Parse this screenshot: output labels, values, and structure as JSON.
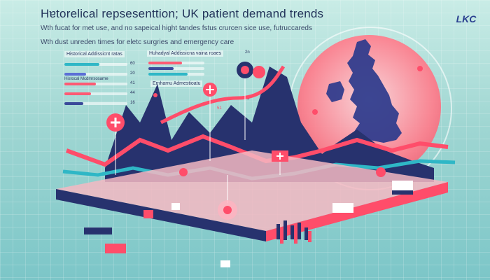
{
  "header": {
    "title": "Hɐtorelical repsesenttion; UK patient demand trends",
    "subtitle": "Wth fucat for met use, and no sapeical hight tandes fstus crurcen sice use, futruccareds",
    "subtitle2": "Wth dust unreden times for eletc surgries and emergency care"
  },
  "logo": {
    "text": "LKC"
  },
  "panels": {
    "left_label": "Historical Addissicnt ratas",
    "center_label": "Huhadyal Addissicna vaina roaes",
    "center_label2": "Emhamu Admestioatu",
    "small_tag": "2n",
    "tick_a": "51",
    "tick_b": "3"
  },
  "left_bars": [
    {
      "label": "",
      "value": "60",
      "color": "#2fb7c6",
      "fill": 0.55
    },
    {
      "label": "",
      "value": "20",
      "color": "#5b6fd6",
      "fill": 0.35
    },
    {
      "label": "Histocal Mcdmrsosarne",
      "value": "41",
      "color": "#ff5a73",
      "fill": 0.5
    },
    {
      "label": "",
      "value": "44",
      "color": "#ff5a73",
      "fill": 0.42
    },
    {
      "label": "",
      "value": "16",
      "color": "#3a4a9a",
      "fill": 0.3
    }
  ],
  "center_bars": [
    {
      "color": "#ff5a73",
      "fill": 0.6
    },
    {
      "color": "#3a4a9a",
      "fill": 0.45
    },
    {
      "color": "#2fb7c6",
      "fill": 0.7
    }
  ],
  "colors": {
    "accent_red": "#ff4d6a",
    "accent_navy": "#27326e",
    "accent_teal": "#2fb7c6",
    "map_fill": "#2b3a8c"
  },
  "icons": [
    "medical-cross-icon",
    "hospital-bed-icon",
    "hospital-building-icon",
    "map-pin-icon",
    "people-crowd-icon"
  ]
}
